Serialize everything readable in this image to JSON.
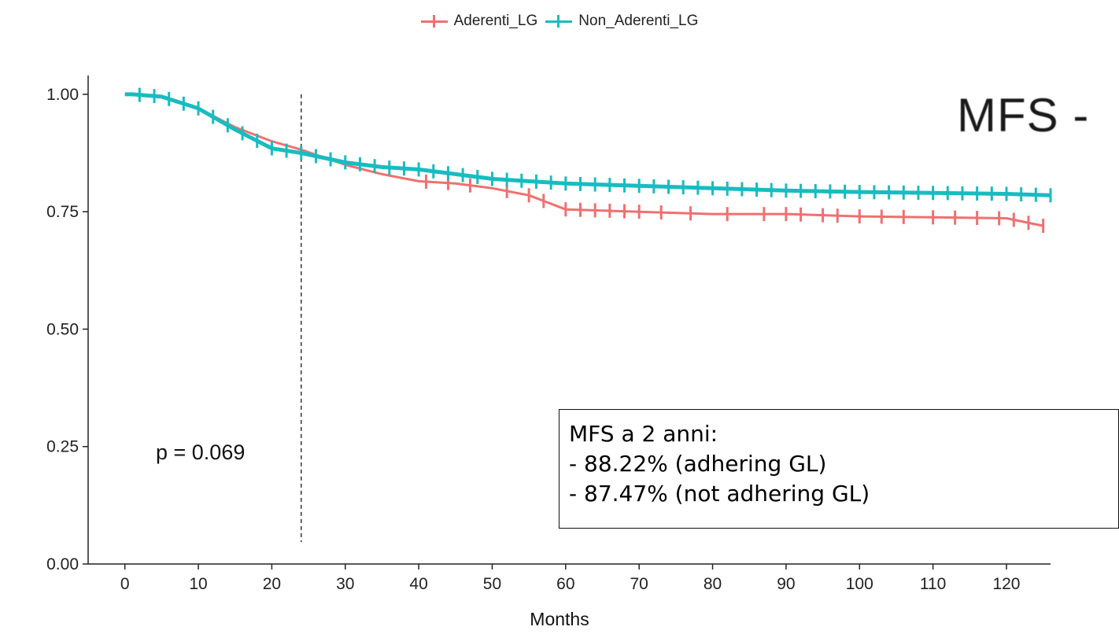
{
  "legend": {
    "items": [
      {
        "label": "Aderenti_LG",
        "color": "#f07070"
      },
      {
        "label": "Non_Aderenti_LG",
        "color": "#18bcc0"
      }
    ]
  },
  "annotations": {
    "pvalue": "p = 0.069",
    "corner_title": "MFS -",
    "box_lines": [
      "MFS a 2 anni:",
      "- 88.22% (adhering GL)",
      "- 87.47% (not adhering GL)"
    ]
  },
  "chart_data": {
    "type": "line",
    "title": "",
    "xlabel": "Months",
    "ylabel": "",
    "xlim": [
      -5,
      126
    ],
    "ylim": [
      0,
      1.04
    ],
    "x_ticks": [
      0,
      10,
      20,
      30,
      40,
      50,
      60,
      70,
      80,
      90,
      100,
      110,
      120
    ],
    "y_ticks": [
      "0.00",
      "0.25",
      "0.50",
      "0.75",
      "1.00"
    ],
    "grid": false,
    "legend_position": "top",
    "reference_line": {
      "x": 24,
      "style": "dashed"
    },
    "series": [
      {
        "name": "Aderenti_LG",
        "color": "#f07070",
        "x": [
          0,
          5,
          10,
          15,
          20,
          24,
          30,
          35,
          40,
          45,
          50,
          55,
          60,
          70,
          80,
          90,
          100,
          110,
          120,
          125
        ],
        "y": [
          1.0,
          0.995,
          0.97,
          0.93,
          0.9,
          0.882,
          0.85,
          0.83,
          0.815,
          0.81,
          0.8,
          0.785,
          0.755,
          0.75,
          0.745,
          0.745,
          0.74,
          0.738,
          0.736,
          0.72
        ],
        "censor_x": [
          41,
          44,
          47,
          52,
          55,
          57,
          60,
          62,
          64,
          66,
          68,
          70,
          73,
          77,
          82,
          87,
          90,
          92,
          95,
          97,
          100,
          103,
          106,
          110,
          113,
          116,
          119,
          121,
          123,
          125
        ]
      },
      {
        "name": "Non_Aderenti_LG",
        "color": "#18bcc0",
        "x": [
          0,
          1,
          5,
          10,
          15,
          20,
          24,
          30,
          35,
          40,
          45,
          50,
          55,
          60,
          70,
          80,
          90,
          100,
          110,
          120,
          126
        ],
        "y": [
          1.0,
          1.0,
          0.995,
          0.97,
          0.925,
          0.885,
          0.875,
          0.855,
          0.845,
          0.84,
          0.83,
          0.82,
          0.815,
          0.81,
          0.805,
          0.8,
          0.795,
          0.792,
          0.79,
          0.788,
          0.785
        ],
        "censor_x": [
          2,
          4,
          6,
          8,
          10,
          12,
          14,
          16,
          18,
          20,
          22,
          24,
          26,
          28,
          30,
          32,
          34,
          36,
          38,
          40,
          42,
          44,
          46,
          48,
          50,
          52,
          54,
          56,
          58,
          60,
          62,
          64,
          66,
          68,
          70,
          72,
          74,
          76,
          78,
          80,
          82,
          84,
          86,
          88,
          90,
          92,
          94,
          96,
          98,
          100,
          102,
          104,
          106,
          108,
          110,
          112,
          114,
          116,
          118,
          120,
          122,
          124,
          126
        ]
      }
    ]
  }
}
